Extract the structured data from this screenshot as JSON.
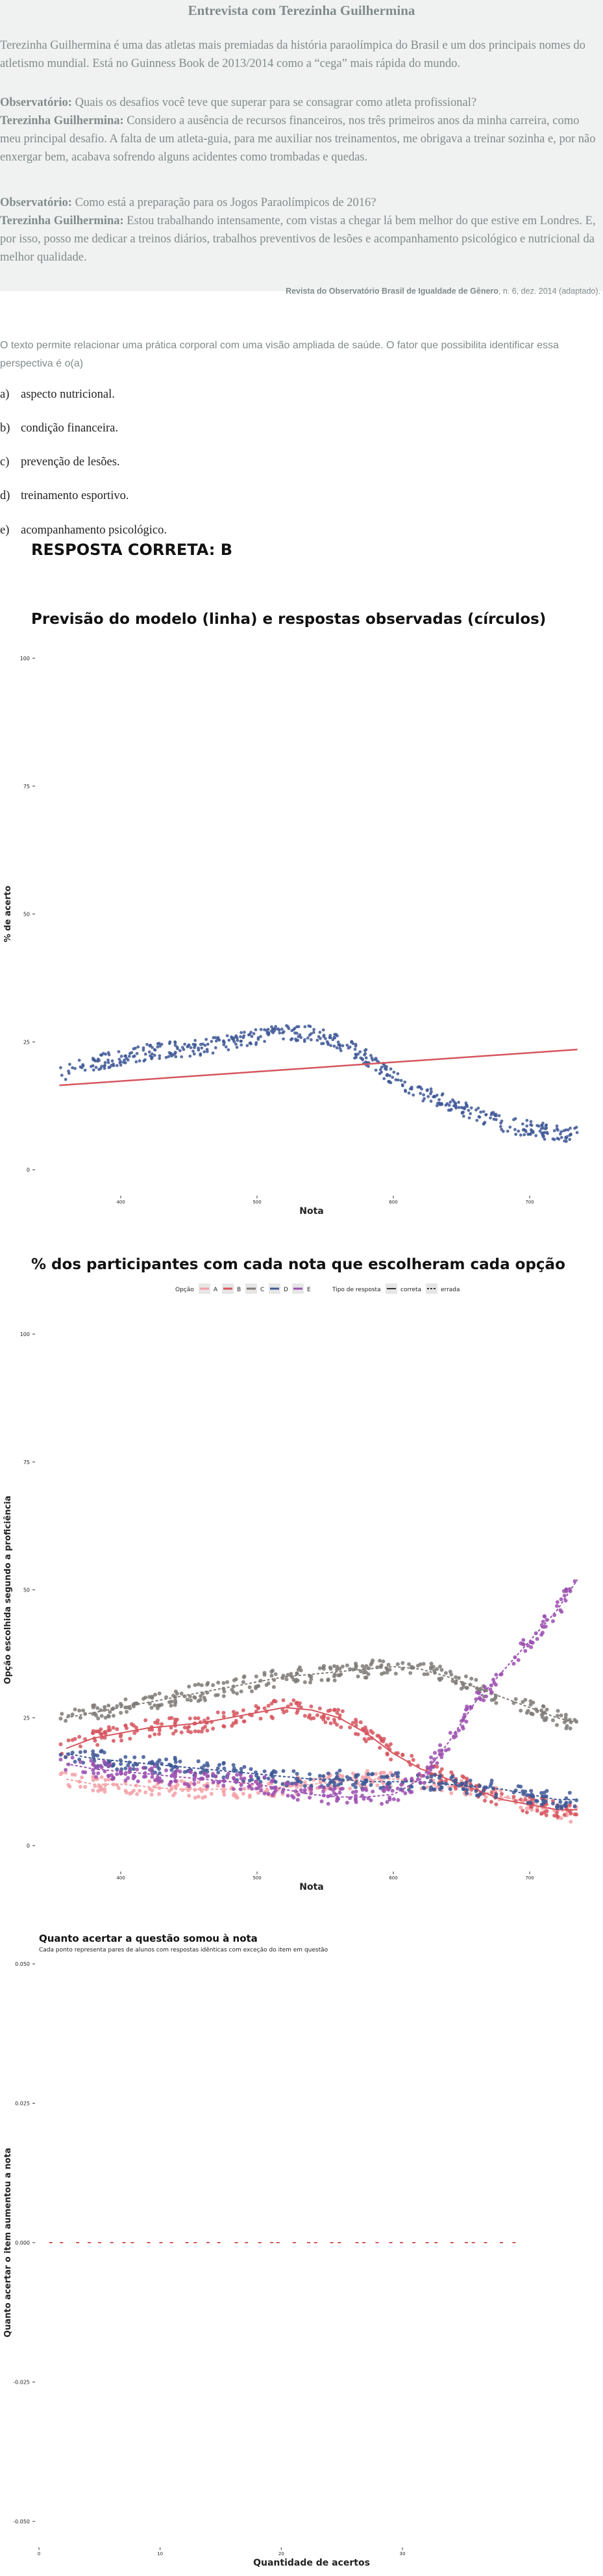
{
  "passage": {
    "title": "Entrevista com Terezinha Guilhermina",
    "intro": "Terezinha Guilhermina é uma das atletas mais premiadas da história paraolímpica do Brasil e um dos principais nomes do atletismo mundial. Está no Guinness Book de 2013/2014 como a “cega” mais rápida do mundo.",
    "q1_speaker": "Observatório:",
    "q1_text": "Quais os desafios você teve que superar para se consagrar como atleta profissional?",
    "a1_speaker": "Terezinha Guilhermina:",
    "a1_text": "Considero a ausência de recursos financeiros, nos três primeiros anos da minha carreira, como meu principal desafio. A falta de um atleta-guia, para me auxiliar nos treinamentos, me obrigava a treinar sozinha e, por não enxergar bem, acabava sofrendo alguns acidentes como trombadas e quedas.",
    "q2_speaker": "Observatório:",
    "q2_text": "Como está a preparação para os Jogos Paraolímpicos de 2016?",
    "a2_speaker": "Terezinha Guilhermina:",
    "a2_text": "Estou trabalhando intensamente, com vistas a chegar lá bem melhor do que estive em Londres. E, por isso, posso me dedicar a treinos diários, trabalhos preventivos de lesões e acompanhamento psicológico e nutricional da melhor qualidade.",
    "source_bold": "Revista do Observatório Brasil de Igualdade de Gênero",
    "source_rest": ", n. 6, dez. 2014 (adaptado)."
  },
  "question": "O texto permite relacionar uma prática corporal com uma visão ampliada de saúde. O fator que possibilita identificar essa perspectiva é o(a)",
  "options": [
    {
      "letter": "a)",
      "text": "aspecto nutricional."
    },
    {
      "letter": "b)",
      "text": "condição financeira."
    },
    {
      "letter": "c)",
      "text": "prevenção de lesões."
    },
    {
      "letter": "d)",
      "text": "treinamento esportivo."
    },
    {
      "letter": "e)",
      "text": "acompanhamento psicológico."
    }
  ],
  "answer": "RESPOSTA CORRETA: B",
  "chart_data": [
    {
      "type": "scatter",
      "title": "Previsão do modelo (linha) e respostas observadas (círculos)",
      "xlabel": "Nota",
      "ylabel": "% de acerto",
      "x_ticks": [
        "400",
        "500",
        "600",
        "700"
      ],
      "y_ticks": [
        "0",
        "25",
        "50",
        "75",
        "100"
      ],
      "xlim": [
        340,
        740
      ],
      "ylim": [
        0,
        100
      ],
      "observed": {
        "x": [
          360,
          380,
          400,
          420,
          440,
          460,
          480,
          500,
          520,
          540,
          560,
          580,
          600,
          620,
          640,
          660,
          680,
          700,
          720
        ],
        "y": [
          19,
          21,
          22,
          23,
          23.5,
          24,
          25,
          26,
          27,
          26.5,
          25,
          22,
          18,
          15,
          13,
          11,
          9,
          8,
          7
        ]
      },
      "model_line": {
        "x": [
          355,
          735
        ],
        "y": [
          16.5,
          23.5
        ]
      },
      "colors": {
        "points": "#3e5896",
        "line": "#d6555e"
      }
    },
    {
      "type": "line",
      "title": "% dos participantes com cada nota que escolheram cada opção",
      "legend": {
        "option_label": "Opção",
        "options": [
          "A",
          "B",
          "C",
          "D",
          "E"
        ],
        "type_label": "Tipo de resposta",
        "types": [
          "correta",
          "errada"
        ],
        "placement": "top"
      },
      "xlabel": "Nota",
      "ylabel": "Opção escolhida segundo a proficiência",
      "x_ticks": [
        "400",
        "500",
        "600",
        "700"
      ],
      "y_ticks": [
        "0",
        "25",
        "50",
        "75",
        "100"
      ],
      "xlim": [
        340,
        740
      ],
      "ylim": [
        0,
        100
      ],
      "x": [
        360,
        380,
        400,
        420,
        440,
        460,
        480,
        500,
        520,
        540,
        560,
        580,
        600,
        620,
        640,
        660,
        680,
        700,
        720,
        735
      ],
      "series": [
        {
          "name": "A",
          "color": "#f4a0a6",
          "values": [
            13,
            12,
            12,
            11.5,
            11,
            11,
            11,
            11,
            11.5,
            12,
            12.5,
            13,
            13,
            12.5,
            12,
            11,
            9.5,
            8.5,
            7,
            6
          ]
        },
        {
          "name": "B",
          "color": "#d6555e",
          "values": [
            19,
            21,
            22,
            23,
            23.5,
            24,
            25,
            26,
            27,
            26.5,
            25,
            22,
            18,
            15,
            13,
            11,
            9,
            8,
            7,
            7
          ]
        },
        {
          "name": "C",
          "color": "#7f7a76",
          "values": [
            25,
            26,
            27,
            28,
            29,
            30,
            31,
            32,
            33,
            33.5,
            34,
            34.5,
            35,
            34.5,
            33,
            31,
            29,
            27,
            25,
            24
          ]
        },
        {
          "name": "D",
          "color": "#3e5896",
          "values": [
            18,
            17,
            16.5,
            16,
            15.5,
            15,
            14.5,
            14,
            13.5,
            13,
            13,
            12.5,
            12.5,
            12.5,
            12,
            11.5,
            11,
            10,
            9,
            9
          ]
        },
        {
          "name": "E",
          "color": "#9b4fb0",
          "values": [
            16,
            15,
            14.5,
            14,
            13.5,
            13,
            12.5,
            12,
            11,
            10,
            9.5,
            9.5,
            10,
            13,
            20,
            28,
            34,
            40,
            46,
            52
          ]
        }
      ]
    },
    {
      "type": "scatter",
      "title": "Quanto acertar a questão somou à nota",
      "subtitle": "Cada ponto representa pares de alunos com respostas idênticas com exceção do item em questão",
      "xlabel": "Quantidade de acertos",
      "ylabel": "Quanto acertar o item aumentou a nota",
      "x_ticks": [
        "0",
        "10",
        "20",
        "30"
      ],
      "y_ticks": [
        "-0.050",
        "-0.025",
        "0.000",
        "0.025",
        "0.050"
      ],
      "xlim": [
        0,
        45
      ],
      "ylim": [
        -0.05,
        0.05
      ],
      "x": [
        1,
        2,
        3,
        4,
        5,
        6,
        7,
        8,
        9,
        10,
        11,
        12,
        13,
        14,
        15,
        16,
        17,
        18,
        19,
        20,
        21,
        22,
        23,
        24,
        25,
        26,
        27,
        28,
        29,
        30,
        31,
        32,
        33,
        34,
        35,
        36,
        37,
        38,
        39
      ],
      "y": [
        0,
        0,
        0,
        0,
        0,
        0,
        0,
        0,
        0,
        0,
        0,
        0,
        0,
        0,
        0,
        0,
        0,
        0,
        0,
        0,
        0,
        0,
        0,
        0,
        0,
        0,
        0,
        0,
        0,
        0,
        0,
        0,
        0,
        0,
        0,
        0,
        0,
        0,
        0
      ],
      "color": "#d6555e"
    }
  ]
}
